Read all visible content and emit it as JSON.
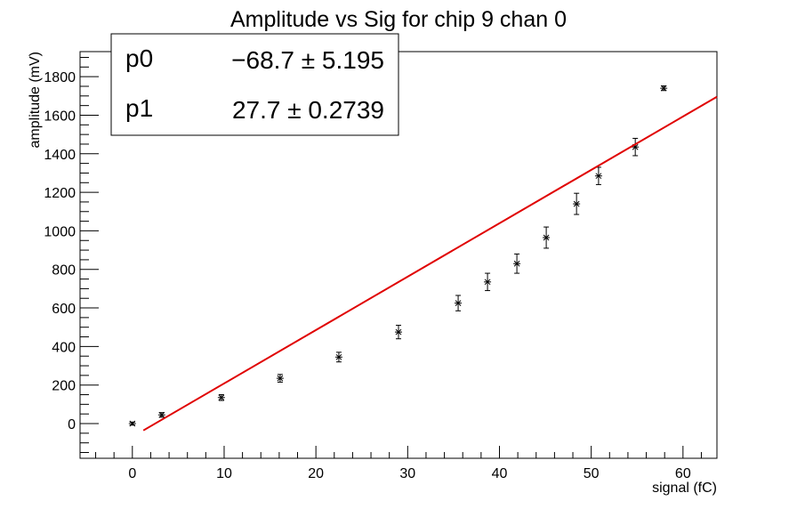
{
  "chart_data": {
    "type": "scatter",
    "title": "Amplitude vs Sig for chip 9 chan 0",
    "xlabel": "signal (fC)",
    "ylabel": "amplitude (mV)",
    "xlim": [
      -5.7,
      63.7
    ],
    "ylim": [
      -180,
      1930
    ],
    "x_ticks": [
      0,
      10,
      20,
      30,
      40,
      50,
      60
    ],
    "y_ticks": [
      0,
      200,
      400,
      600,
      800,
      1000,
      1200,
      1400,
      1600,
      1800
    ],
    "grid": false,
    "points": [
      {
        "x": 0.0,
        "y": 0,
        "err": 8
      },
      {
        "x": 3.2,
        "y": 45,
        "err": 12
      },
      {
        "x": 9.7,
        "y": 135,
        "err": 15
      },
      {
        "x": 16.1,
        "y": 235,
        "err": 20
      },
      {
        "x": 22.5,
        "y": 345,
        "err": 25
      },
      {
        "x": 29.0,
        "y": 475,
        "err": 35
      },
      {
        "x": 35.5,
        "y": 625,
        "err": 40
      },
      {
        "x": 38.7,
        "y": 735,
        "err": 45
      },
      {
        "x": 41.9,
        "y": 830,
        "err": 50
      },
      {
        "x": 45.1,
        "y": 965,
        "err": 55
      },
      {
        "x": 48.4,
        "y": 1140,
        "err": 55
      },
      {
        "x": 50.8,
        "y": 1285,
        "err": 45
      },
      {
        "x": 54.8,
        "y": 1435,
        "err": 45
      },
      {
        "x": 57.9,
        "y": 1740,
        "err": 12
      }
    ],
    "fit": {
      "function": "p0 + p1*x",
      "p0": -68.7,
      "p1": 27.7,
      "x_range": [
        1.2,
        63.7
      ],
      "color": "#e00000"
    },
    "stats_box": {
      "rows": [
        {
          "name": "p0",
          "value": "−68.7 ± 5.195"
        },
        {
          "name": "p1",
          "value": "27.7 ± 0.2739"
        }
      ],
      "placement": "top-left"
    }
  }
}
